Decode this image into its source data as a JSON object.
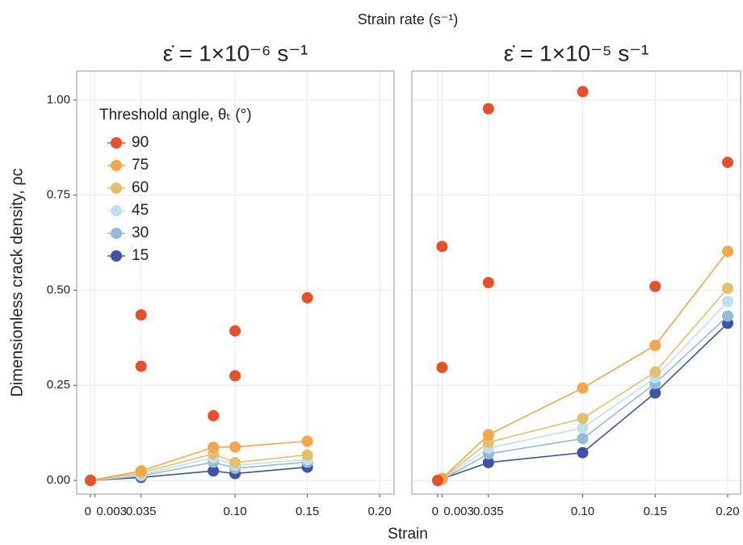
{
  "title": "Strain rate (s⁻¹)",
  "x_label": "Strain",
  "y_label": "Dimensionless crack density, ρc",
  "legend_title": "Threshold angle, θₜ (°)",
  "legend_position": "top-left",
  "chart_data": [
    {
      "type": "line",
      "title": "ε̇ = 1×10⁻⁶ s⁻¹",
      "grid": true,
      "xlim": [
        -0.0095,
        0.21
      ],
      "xticks": [
        0,
        0.003,
        0.035,
        {
          "value": 0.1,
          "label": "0.10"
        },
        0.15,
        {
          "value": 0.2,
          "label": "0.20"
        }
      ],
      "ylim": [
        -0.036,
        1.076
      ],
      "yticks": [
        {
          "value": 0,
          "label": "0.00"
        },
        {
          "value": 0.25,
          "label": "0.25"
        },
        {
          "value": 0.5,
          "label": "0.50"
        },
        {
          "value": 0.75,
          "label": "0.75"
        },
        {
          "value": 1,
          "label": "1.00"
        }
      ],
      "series": [
        {
          "name": "90",
          "color": "#e8502a",
          "line": false,
          "x": [
            0,
            0.035,
            0.035,
            0.085,
            0.1,
            0.1,
            0.15
          ],
          "values": [
            0,
            0.435,
            0.3,
            0.17,
            0.393,
            0.275,
            0.48
          ]
        },
        {
          "name": "75",
          "color": "#f5a54a",
          "line": true,
          "x": [
            0,
            0.035,
            0.085,
            0.1,
            0.15
          ],
          "values": [
            0,
            0.025,
            0.087,
            0.088,
            0.103
          ]
        },
        {
          "name": "60",
          "color": "#e3c06b",
          "line": true,
          "x": [
            0,
            0.035,
            0.085,
            0.1,
            0.15
          ],
          "values": [
            0,
            0.02,
            0.07,
            0.047,
            0.067
          ]
        },
        {
          "name": "45",
          "color": "#bfe0ee",
          "line": true,
          "x": [
            0,
            0.035,
            0.085,
            0.1,
            0.15
          ],
          "values": [
            0,
            0.015,
            0.06,
            0.04,
            0.055
          ]
        },
        {
          "name": "30",
          "color": "#93bcd6",
          "line": true,
          "x": [
            0,
            0.035,
            0.085,
            0.1,
            0.15
          ],
          "values": [
            0,
            0.012,
            0.048,
            0.032,
            0.048
          ]
        },
        {
          "name": "15",
          "color": "#3d53a4",
          "line": true,
          "x": [
            0,
            0.035,
            0.085,
            0.1,
            0.15
          ],
          "values": [
            0,
            0.008,
            0.025,
            0.018,
            0.035
          ]
        }
      ]
    },
    {
      "type": "line",
      "title": "ε̇ = 1×10⁻⁵ s⁻¹",
      "grid": true,
      "xlim": [
        -0.0178,
        0.2089
      ],
      "xticks": [
        0,
        0.003,
        0.035,
        {
          "value": 0.1,
          "label": "0.10"
        },
        0.15,
        {
          "value": 0.2,
          "label": "0.20"
        }
      ],
      "ylim": [
        -0.036,
        1.076
      ],
      "yticks": [
        0,
        0.25,
        0.5,
        0.75,
        1
      ],
      "series": [
        {
          "color": "#e8502a",
          "line": false,
          "x": [
            0,
            0.003,
            0.003,
            0.035,
            0.035,
            0.1,
            0.15,
            0.2
          ],
          "values": [
            0,
            0.615,
            0.297,
            0.977,
            0.52,
            1.022,
            0.51,
            0.836
          ]
        },
        {
          "color": "#f5a54a",
          "line": true,
          "x": [
            0.003,
            0.035,
            0.1,
            0.15,
            0.2
          ],
          "values": [
            0.005,
            0.12,
            0.243,
            0.355,
            0.602
          ]
        },
        {
          "color": "#e3c06b",
          "line": true,
          "x": [
            0.003,
            0.035,
            0.1,
            0.15,
            0.2
          ],
          "values": [
            0.004,
            0.1,
            0.163,
            0.285,
            0.505
          ]
        },
        {
          "color": "#bfe0ee",
          "line": true,
          "x": [
            0.003,
            0.035,
            0.1,
            0.15,
            0.2
          ],
          "values": [
            0.003,
            0.085,
            0.138,
            0.27,
            0.47
          ]
        },
        {
          "color": "#93bcd6",
          "line": true,
          "x": [
            0.003,
            0.035,
            0.1,
            0.15,
            0.2
          ],
          "values": [
            0.002,
            0.07,
            0.11,
            0.255,
            0.432
          ]
        },
        {
          "color": "#3d53a4",
          "line": true,
          "x": [
            0,
            0.035,
            0.1,
            0.15,
            0.2
          ],
          "values": [
            0,
            0.047,
            0.073,
            0.23,
            0.413
          ]
        }
      ]
    }
  ]
}
